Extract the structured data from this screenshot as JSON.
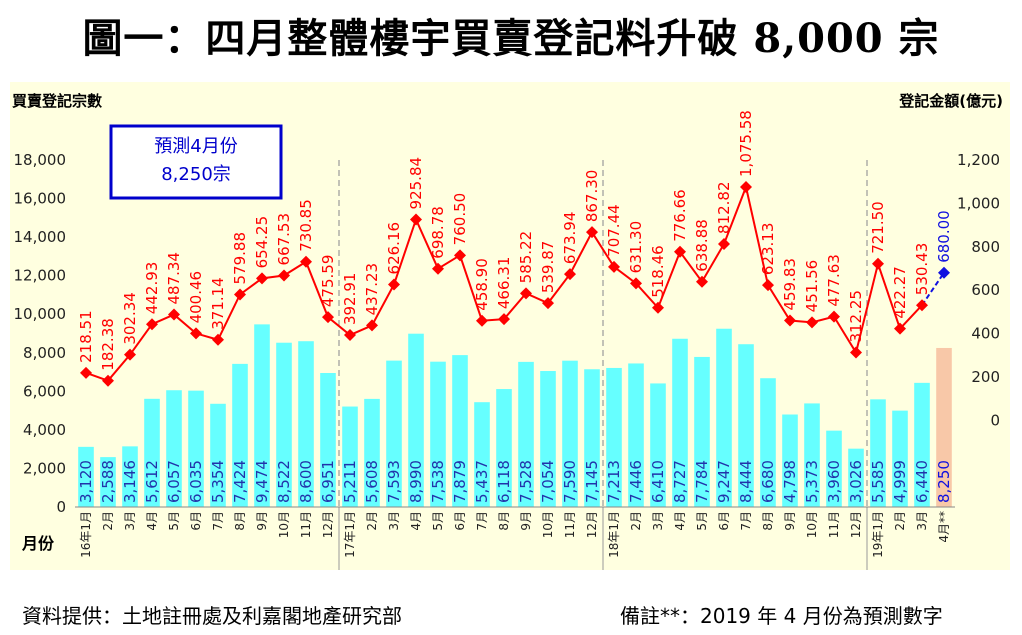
{
  "header": {
    "title": "圖一：四月整體樓宇買賣登記料升破 8,000 宗"
  },
  "footer": {
    "source": "資料提供：土地註冊處及利嘉閣地產研究部",
    "note": "備註**：2019 年 4 月份為預測數字"
  },
  "colors": {
    "plot_bg": "#FFFFE0",
    "bar": "#66FFFF",
    "bar_forecast": "#F8C8A8",
    "line": "#FF0000",
    "line_forecast": "#1010E0",
    "callout_border": "#0000CC"
  },
  "chart_data": {
    "type": "bar",
    "title": "圖一：四月整體樓宇買賣登記料升破 8,000 宗",
    "ylabel": "買賣登記宗數",
    "y2label": "登記金額(億元)",
    "xlabel": "月份",
    "ylim": [
      0,
      18000
    ],
    "y2lim": [
      -400,
      1200
    ],
    "yticks": [
      "0",
      "2,000",
      "4,000",
      "6,000",
      "8,000",
      "10,000",
      "12,000",
      "14,000",
      "16,000",
      "18,000"
    ],
    "y2ticks": [
      "0",
      "200",
      "400",
      "600",
      "800",
      "1,000",
      "1,200"
    ],
    "y2tick_values": [
      0,
      200,
      400,
      600,
      800,
      1000,
      1200
    ],
    "grid": false,
    "categories": [
      "16年1月",
      "2月",
      "3月",
      "4月",
      "5月",
      "6月",
      "7月",
      "8月",
      "9月",
      "10月",
      "11月",
      "12月",
      "17年1月",
      "2月",
      "3月",
      "4月",
      "5月",
      "6月",
      "7月",
      "8月",
      "9月",
      "10月",
      "11月",
      "12月",
      "18年1月",
      "2月",
      "3月",
      "4月",
      "5月",
      "6月",
      "7月",
      "8月",
      "9月",
      "10月",
      "11月",
      "12月",
      "19年1月",
      "2月",
      "3月",
      "4月**"
    ],
    "year_dividers_after": [
      11,
      23,
      35
    ],
    "series": [
      {
        "name": "買賣登記宗數",
        "type": "bar",
        "axis": "left",
        "values": [
          3120,
          2588,
          3146,
          5612,
          6057,
          6035,
          5354,
          7424,
          9474,
          8522,
          8600,
          6951,
          5211,
          5608,
          7593,
          8990,
          7538,
          7879,
          5437,
          6118,
          7528,
          7054,
          7590,
          7145,
          7213,
          7446,
          6410,
          8727,
          7784,
          9247,
          8444,
          6680,
          4798,
          5373,
          3960,
          3026,
          5585,
          4999,
          6440,
          8250
        ],
        "labels": [
          "3,120",
          "2,588",
          "3,146",
          "5,612",
          "6,057",
          "6,035",
          "5,354",
          "7,424",
          "9,474",
          "8,522",
          "8,600",
          "6,951",
          "5,211",
          "5,608",
          "7,593",
          "8,990",
          "7,538",
          "7,879",
          "5,437",
          "6,118",
          "7,528",
          "7,054",
          "7,590",
          "7,145",
          "7,213",
          "7,446",
          "6,410",
          "8,727",
          "7,784",
          "9,247",
          "8,444",
          "6,680",
          "4,798",
          "5,373",
          "3,960",
          "3,026",
          "5,585",
          "4,999",
          "6,440",
          "8,250"
        ],
        "forecast_index": 39
      },
      {
        "name": "登記金額(億元)",
        "type": "line",
        "axis": "right",
        "values": [
          218.51,
          182.38,
          302.34,
          442.93,
          487.34,
          400.46,
          371.14,
          579.88,
          654.25,
          667.53,
          730.85,
          475.59,
          392.91,
          437.23,
          626.16,
          925.84,
          698.78,
          760.5,
          458.9,
          466.31,
          585.22,
          539.87,
          673.94,
          867.3,
          707.44,
          631.3,
          518.46,
          776.66,
          638.88,
          812.82,
          1075.58,
          623.13,
          459.83,
          451.56,
          477.63,
          312.25,
          721.5,
          422.27,
          530.43,
          680.0
        ],
        "labels": [
          "218.51",
          "182.38",
          "302.34",
          "442.93",
          "487.34",
          "400.46",
          "371.14",
          "579.88",
          "654.25",
          "667.53",
          "730.85",
          "475.59",
          "392.91",
          "437.23",
          "626.16",
          "925.84",
          "698.78",
          "760.50",
          "458.90",
          "466.31",
          "585.22",
          "539.87",
          "673.94",
          "867.30",
          "707.44",
          "631.30",
          "518.46",
          "776.66",
          "638.88",
          "812.82",
          "1,075.58",
          "623.13",
          "459.83",
          "451.56",
          "477.63",
          "312.25",
          "721.50",
          "422.27",
          "530.43",
          "680.00"
        ],
        "forecast_index": 39
      }
    ],
    "annotations": [
      {
        "text_line1": "預測4月份",
        "text_line2": "8,250宗"
      }
    ]
  }
}
